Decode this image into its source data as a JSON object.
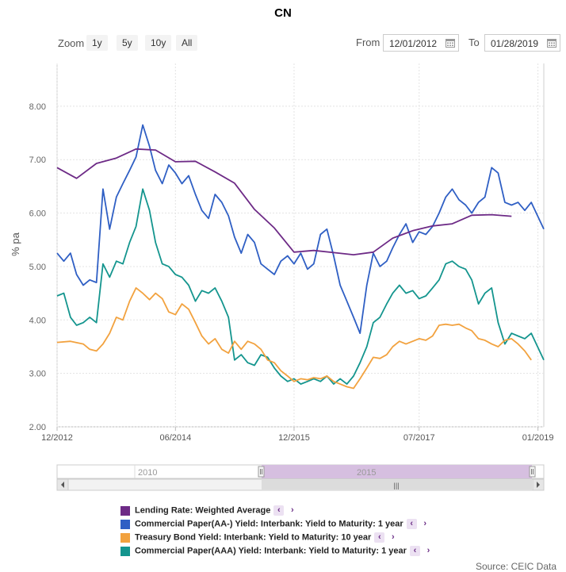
{
  "title": "CN",
  "zoom": {
    "label": "Zoom",
    "buttons": [
      "1y",
      "5y",
      "10y",
      "All"
    ]
  },
  "range": {
    "from_label": "From",
    "from_value": "12/01/2012",
    "to_label": "To",
    "to_value": "01/28/2019"
  },
  "source": "Source: CEIC Data",
  "navigator": {
    "labels": [
      "2010",
      "2015"
    ],
    "scroll_glyph": "|||"
  },
  "colors": {
    "lending": "#6d2a86",
    "cp_aa": "#2f5fc4",
    "treasury": "#f2a23f",
    "cp_aaa": "#14958e",
    "navigator_sel": "#d6bfe0"
  },
  "chart_data": {
    "type": "line",
    "ylabel": "% pa",
    "ylim": [
      2.0,
      8.8
    ],
    "yticks": [
      "2.00",
      "3.00",
      "4.00",
      "5.00",
      "6.00",
      "7.00",
      "8.00"
    ],
    "xlim": [
      "2012-12-01",
      "2019-01-28"
    ],
    "xticks": [
      {
        "date": "2012-12-01",
        "label": "12/2012"
      },
      {
        "date": "2014-06-01",
        "label": "06/2014"
      },
      {
        "date": "2015-12-01",
        "label": "12/2015"
      },
      {
        "date": "2017-07-01",
        "label": "07/2017"
      },
      {
        "date": "2019-01-01",
        "label": "01/2019"
      }
    ],
    "series": [
      {
        "name": "Lending Rate: Weighted Average",
        "color": "#6d2a86",
        "points": [
          [
            "2012-12-01",
            6.85
          ],
          [
            "2013-03-01",
            6.65
          ],
          [
            "2013-06-01",
            6.93
          ],
          [
            "2013-09-01",
            7.03
          ],
          [
            "2013-12-01",
            7.2
          ],
          [
            "2014-03-01",
            7.18
          ],
          [
            "2014-06-01",
            6.96
          ],
          [
            "2014-09-01",
            6.97
          ],
          [
            "2014-12-01",
            6.77
          ],
          [
            "2015-03-01",
            6.56
          ],
          [
            "2015-06-01",
            6.07
          ],
          [
            "2015-09-01",
            5.72
          ],
          [
            "2015-12-01",
            5.27
          ],
          [
            "2016-03-01",
            5.3
          ],
          [
            "2016-06-01",
            5.26
          ],
          [
            "2016-09-01",
            5.22
          ],
          [
            "2016-12-01",
            5.27
          ],
          [
            "2017-03-01",
            5.53
          ],
          [
            "2017-06-01",
            5.67
          ],
          [
            "2017-09-01",
            5.76
          ],
          [
            "2017-12-01",
            5.8
          ],
          [
            "2018-03-01",
            5.96
          ],
          [
            "2018-06-01",
            5.97
          ],
          [
            "2018-09-01",
            5.94
          ]
        ]
      },
      {
        "name": "Commercial Paper(AA-) Yield: Interbank: Yield to Maturity: 1 year",
        "color": "#2f5fc4",
        "points": [
          [
            "2012-12-01",
            5.25
          ],
          [
            "2013-01-01",
            5.1
          ],
          [
            "2013-02-01",
            5.25
          ],
          [
            "2013-03-01",
            4.85
          ],
          [
            "2013-04-01",
            4.65
          ],
          [
            "2013-05-01",
            4.75
          ],
          [
            "2013-06-01",
            4.7
          ],
          [
            "2013-07-01",
            6.45
          ],
          [
            "2013-08-01",
            5.7
          ],
          [
            "2013-09-01",
            6.3
          ],
          [
            "2013-10-01",
            6.55
          ],
          [
            "2013-11-01",
            6.8
          ],
          [
            "2013-12-01",
            7.05
          ],
          [
            "2014-01-01",
            7.65
          ],
          [
            "2014-02-01",
            7.25
          ],
          [
            "2014-03-01",
            6.8
          ],
          [
            "2014-04-01",
            6.55
          ],
          [
            "2014-05-01",
            6.9
          ],
          [
            "2014-06-01",
            6.75
          ],
          [
            "2014-07-01",
            6.55
          ],
          [
            "2014-08-01",
            6.7
          ],
          [
            "2014-09-01",
            6.35
          ],
          [
            "2014-10-01",
            6.05
          ],
          [
            "2014-11-01",
            5.9
          ],
          [
            "2014-12-01",
            6.35
          ],
          [
            "2015-01-01",
            6.2
          ],
          [
            "2015-02-01",
            5.95
          ],
          [
            "2015-03-01",
            5.55
          ],
          [
            "2015-04-01",
            5.25
          ],
          [
            "2015-05-01",
            5.6
          ],
          [
            "2015-06-01",
            5.45
          ],
          [
            "2015-07-01",
            5.05
          ],
          [
            "2015-08-01",
            4.95
          ],
          [
            "2015-09-01",
            4.85
          ],
          [
            "2015-10-01",
            5.1
          ],
          [
            "2015-11-01",
            5.2
          ],
          [
            "2015-12-01",
            5.05
          ],
          [
            "2016-01-01",
            5.25
          ],
          [
            "2016-02-01",
            4.95
          ],
          [
            "2016-03-01",
            5.05
          ],
          [
            "2016-04-01",
            5.6
          ],
          [
            "2016-05-01",
            5.7
          ],
          [
            "2016-06-01",
            5.2
          ],
          [
            "2016-07-01",
            4.65
          ],
          [
            "2016-08-01",
            4.35
          ],
          [
            "2016-09-01",
            4.05
          ],
          [
            "2016-10-01",
            3.75
          ],
          [
            "2016-11-01",
            4.65
          ],
          [
            "2016-12-01",
            5.25
          ],
          [
            "2017-01-01",
            5.0
          ],
          [
            "2017-02-01",
            5.1
          ],
          [
            "2017-03-01",
            5.35
          ],
          [
            "2017-04-01",
            5.6
          ],
          [
            "2017-05-01",
            5.8
          ],
          [
            "2017-06-01",
            5.45
          ],
          [
            "2017-07-01",
            5.65
          ],
          [
            "2017-08-01",
            5.6
          ],
          [
            "2017-09-01",
            5.75
          ],
          [
            "2017-10-01",
            6.0
          ],
          [
            "2017-11-01",
            6.3
          ],
          [
            "2017-12-01",
            6.45
          ],
          [
            "2018-01-01",
            6.25
          ],
          [
            "2018-02-01",
            6.15
          ],
          [
            "2018-03-01",
            6.0
          ],
          [
            "2018-04-01",
            6.2
          ],
          [
            "2018-05-01",
            6.3
          ],
          [
            "2018-06-01",
            6.85
          ],
          [
            "2018-07-01",
            6.75
          ],
          [
            "2018-08-01",
            6.2
          ],
          [
            "2018-09-01",
            6.15
          ],
          [
            "2018-10-01",
            6.2
          ],
          [
            "2018-11-01",
            6.05
          ],
          [
            "2018-12-01",
            6.2
          ],
          [
            "2019-01-28",
            5.7
          ]
        ]
      },
      {
        "name": "Treasury Bond Yield: Interbank: Yield to Maturity: 10 year",
        "color": "#f2a23f",
        "points": [
          [
            "2012-12-01",
            3.58
          ],
          [
            "2013-02-01",
            3.6
          ],
          [
            "2013-04-01",
            3.55
          ],
          [
            "2013-05-01",
            3.45
          ],
          [
            "2013-06-01",
            3.42
          ],
          [
            "2013-07-01",
            3.55
          ],
          [
            "2013-08-01",
            3.75
          ],
          [
            "2013-09-01",
            4.05
          ],
          [
            "2013-10-01",
            4.0
          ],
          [
            "2013-11-01",
            4.35
          ],
          [
            "2013-12-01",
            4.6
          ],
          [
            "2014-01-01",
            4.5
          ],
          [
            "2014-02-01",
            4.38
          ],
          [
            "2014-03-01",
            4.5
          ],
          [
            "2014-04-01",
            4.4
          ],
          [
            "2014-05-01",
            4.15
          ],
          [
            "2014-06-01",
            4.1
          ],
          [
            "2014-07-01",
            4.3
          ],
          [
            "2014-08-01",
            4.2
          ],
          [
            "2014-09-01",
            3.95
          ],
          [
            "2014-10-01",
            3.7
          ],
          [
            "2014-11-01",
            3.55
          ],
          [
            "2014-12-01",
            3.65
          ],
          [
            "2015-01-01",
            3.45
          ],
          [
            "2015-02-01",
            3.38
          ],
          [
            "2015-03-01",
            3.6
          ],
          [
            "2015-04-01",
            3.45
          ],
          [
            "2015-05-01",
            3.6
          ],
          [
            "2015-06-01",
            3.55
          ],
          [
            "2015-07-01",
            3.45
          ],
          [
            "2015-08-01",
            3.25
          ],
          [
            "2015-09-01",
            3.2
          ],
          [
            "2015-10-01",
            3.05
          ],
          [
            "2015-11-01",
            2.95
          ],
          [
            "2015-12-01",
            2.85
          ],
          [
            "2016-01-01",
            2.9
          ],
          [
            "2016-02-01",
            2.88
          ],
          [
            "2016-03-01",
            2.92
          ],
          [
            "2016-04-01",
            2.9
          ],
          [
            "2016-05-01",
            2.95
          ],
          [
            "2016-06-01",
            2.85
          ],
          [
            "2016-07-01",
            2.8
          ],
          [
            "2016-08-01",
            2.75
          ],
          [
            "2016-09-01",
            2.72
          ],
          [
            "2016-10-01",
            2.9
          ],
          [
            "2016-11-01",
            3.1
          ],
          [
            "2016-12-01",
            3.3
          ],
          [
            "2017-01-01",
            3.28
          ],
          [
            "2017-02-01",
            3.35
          ],
          [
            "2017-03-01",
            3.5
          ],
          [
            "2017-04-01",
            3.6
          ],
          [
            "2017-05-01",
            3.55
          ],
          [
            "2017-06-01",
            3.6
          ],
          [
            "2017-07-01",
            3.65
          ],
          [
            "2017-08-01",
            3.62
          ],
          [
            "2017-09-01",
            3.7
          ],
          [
            "2017-10-01",
            3.9
          ],
          [
            "2017-11-01",
            3.92
          ],
          [
            "2017-12-01",
            3.9
          ],
          [
            "2018-01-01",
            3.92
          ],
          [
            "2018-02-01",
            3.85
          ],
          [
            "2018-03-01",
            3.8
          ],
          [
            "2018-04-01",
            3.65
          ],
          [
            "2018-05-01",
            3.62
          ],
          [
            "2018-06-01",
            3.55
          ],
          [
            "2018-07-01",
            3.5
          ],
          [
            "2018-08-01",
            3.62
          ],
          [
            "2018-09-01",
            3.65
          ],
          [
            "2018-10-01",
            3.55
          ],
          [
            "2018-11-01",
            3.42
          ],
          [
            "2018-12-01",
            3.25
          ]
        ]
      },
      {
        "name": "Commercial Paper(AAA) Yield: Interbank: Yield to Maturity: 1 year",
        "color": "#14958e",
        "points": [
          [
            "2012-12-01",
            4.45
          ],
          [
            "2013-01-01",
            4.5
          ],
          [
            "2013-02-01",
            4.05
          ],
          [
            "2013-03-01",
            3.9
          ],
          [
            "2013-04-01",
            3.95
          ],
          [
            "2013-05-01",
            4.05
          ],
          [
            "2013-06-01",
            3.95
          ],
          [
            "2013-07-01",
            5.05
          ],
          [
            "2013-08-01",
            4.8
          ],
          [
            "2013-09-01",
            5.1
          ],
          [
            "2013-10-01",
            5.05
          ],
          [
            "2013-11-01",
            5.45
          ],
          [
            "2013-12-01",
            5.75
          ],
          [
            "2014-01-01",
            6.45
          ],
          [
            "2014-02-01",
            6.05
          ],
          [
            "2014-03-01",
            5.45
          ],
          [
            "2014-04-01",
            5.05
          ],
          [
            "2014-05-01",
            5.0
          ],
          [
            "2014-06-01",
            4.85
          ],
          [
            "2014-07-01",
            4.8
          ],
          [
            "2014-08-01",
            4.65
          ],
          [
            "2014-09-01",
            4.35
          ],
          [
            "2014-10-01",
            4.55
          ],
          [
            "2014-11-01",
            4.5
          ],
          [
            "2014-12-01",
            4.6
          ],
          [
            "2015-01-01",
            4.35
          ],
          [
            "2015-02-01",
            4.05
          ],
          [
            "2015-03-01",
            3.25
          ],
          [
            "2015-04-01",
            3.35
          ],
          [
            "2015-05-01",
            3.2
          ],
          [
            "2015-06-01",
            3.15
          ],
          [
            "2015-07-01",
            3.35
          ],
          [
            "2015-08-01",
            3.3
          ],
          [
            "2015-09-01",
            3.1
          ],
          [
            "2015-10-01",
            2.95
          ],
          [
            "2015-11-01",
            2.85
          ],
          [
            "2015-12-01",
            2.9
          ],
          [
            "2016-01-01",
            2.8
          ],
          [
            "2016-02-01",
            2.85
          ],
          [
            "2016-03-01",
            2.9
          ],
          [
            "2016-04-01",
            2.85
          ],
          [
            "2016-05-01",
            2.95
          ],
          [
            "2016-06-01",
            2.8
          ],
          [
            "2016-07-01",
            2.9
          ],
          [
            "2016-08-01",
            2.8
          ],
          [
            "2016-09-01",
            2.95
          ],
          [
            "2016-10-01",
            3.2
          ],
          [
            "2016-11-01",
            3.5
          ],
          [
            "2016-12-01",
            3.95
          ],
          [
            "2017-01-01",
            4.05
          ],
          [
            "2017-02-01",
            4.3
          ],
          [
            "2017-03-01",
            4.5
          ],
          [
            "2017-04-01",
            4.65
          ],
          [
            "2017-05-01",
            4.5
          ],
          [
            "2017-06-01",
            4.55
          ],
          [
            "2017-07-01",
            4.4
          ],
          [
            "2017-08-01",
            4.45
          ],
          [
            "2017-09-01",
            4.6
          ],
          [
            "2017-10-01",
            4.75
          ],
          [
            "2017-11-01",
            5.05
          ],
          [
            "2017-12-01",
            5.1
          ],
          [
            "2018-01-01",
            5.0
          ],
          [
            "2018-02-01",
            4.95
          ],
          [
            "2018-03-01",
            4.75
          ],
          [
            "2018-04-01",
            4.3
          ],
          [
            "2018-05-01",
            4.5
          ],
          [
            "2018-06-01",
            4.6
          ],
          [
            "2018-07-01",
            3.95
          ],
          [
            "2018-08-01",
            3.55
          ],
          [
            "2018-09-01",
            3.75
          ],
          [
            "2018-10-01",
            3.7
          ],
          [
            "2018-11-01",
            3.65
          ],
          [
            "2018-12-01",
            3.75
          ],
          [
            "2019-01-28",
            3.25
          ]
        ]
      }
    ]
  }
}
